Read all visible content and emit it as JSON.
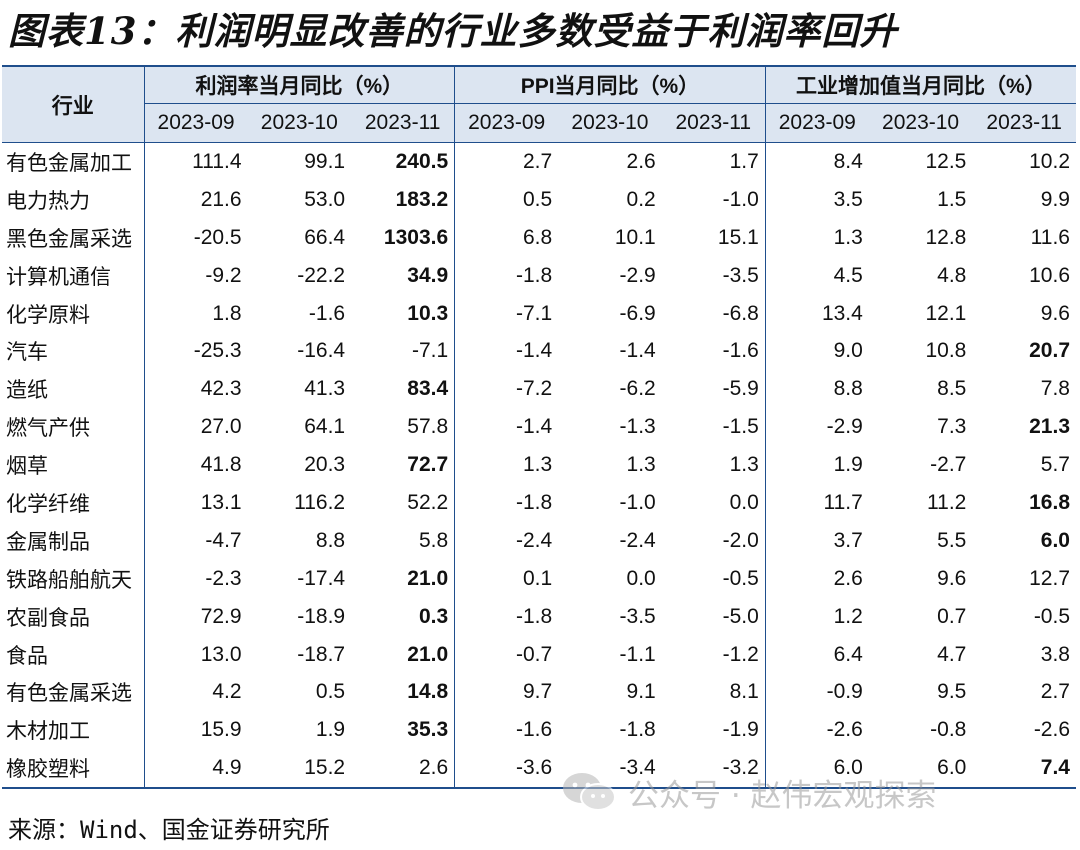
{
  "title": "图表13：利润明显改善的行业多数受益于利润率回升",
  "header": {
    "industry": "行业",
    "groups": [
      "利润率当月同比（%）",
      "PPI当月同比（%）",
      "工业增加值当月同比（%）"
    ],
    "periods": [
      "2023-09",
      "2023-10",
      "2023-11"
    ]
  },
  "rows": [
    {
      "name": "有色金属加工",
      "v": [
        "111.4",
        "99.1",
        "240.5",
        "2.7",
        "2.6",
        "1.7",
        "8.4",
        "12.5",
        "10.2"
      ],
      "bold": [
        2
      ]
    },
    {
      "name": "电力热力",
      "v": [
        "21.6",
        "53.0",
        "183.2",
        "0.5",
        "0.2",
        "-1.0",
        "3.5",
        "1.5",
        "9.9"
      ],
      "bold": [
        2
      ]
    },
    {
      "name": "黑色金属采选",
      "v": [
        "-20.5",
        "66.4",
        "1303.6",
        "6.8",
        "10.1",
        "15.1",
        "1.3",
        "12.8",
        "11.6"
      ],
      "bold": [
        2
      ]
    },
    {
      "name": "计算机通信",
      "v": [
        "-9.2",
        "-22.2",
        "34.9",
        "-1.8",
        "-2.9",
        "-3.5",
        "4.5",
        "4.8",
        "10.6"
      ],
      "bold": [
        2
      ]
    },
    {
      "name": "化学原料",
      "v": [
        "1.8",
        "-1.6",
        "10.3",
        "-7.1",
        "-6.9",
        "-6.8",
        "13.4",
        "12.1",
        "9.6"
      ],
      "bold": [
        2
      ]
    },
    {
      "name": "汽车",
      "v": [
        "-25.3",
        "-16.4",
        "-7.1",
        "-1.4",
        "-1.4",
        "-1.6",
        "9.0",
        "10.8",
        "20.7"
      ],
      "bold": [
        8
      ]
    },
    {
      "name": "造纸",
      "v": [
        "42.3",
        "41.3",
        "83.4",
        "-7.2",
        "-6.2",
        "-5.9",
        "8.8",
        "8.5",
        "7.8"
      ],
      "bold": [
        2
      ]
    },
    {
      "name": "燃气产供",
      "v": [
        "27.0",
        "64.1",
        "57.8",
        "-1.4",
        "-1.3",
        "-1.5",
        "-2.9",
        "7.3",
        "21.3"
      ],
      "bold": [
        8
      ]
    },
    {
      "name": "烟草",
      "v": [
        "41.8",
        "20.3",
        "72.7",
        "1.3",
        "1.3",
        "1.3",
        "1.9",
        "-2.7",
        "5.7"
      ],
      "bold": [
        2
      ]
    },
    {
      "name": "化学纤维",
      "v": [
        "13.1",
        "116.2",
        "52.2",
        "-1.8",
        "-1.0",
        "0.0",
        "11.7",
        "11.2",
        "16.8"
      ],
      "bold": [
        8
      ]
    },
    {
      "name": "金属制品",
      "v": [
        "-4.7",
        "8.8",
        "5.8",
        "-2.4",
        "-2.4",
        "-2.0",
        "3.7",
        "5.5",
        "6.0"
      ],
      "bold": [
        8
      ]
    },
    {
      "name": "铁路船舶航天",
      "v": [
        "-2.3",
        "-17.4",
        "21.0",
        "0.1",
        "0.0",
        "-0.5",
        "2.6",
        "9.6",
        "12.7"
      ],
      "bold": [
        2
      ]
    },
    {
      "name": "农副食品",
      "v": [
        "72.9",
        "-18.9",
        "0.3",
        "-1.8",
        "-3.5",
        "-5.0",
        "1.2",
        "0.7",
        "-0.5"
      ],
      "bold": [
        2
      ]
    },
    {
      "name": "食品",
      "v": [
        "13.0",
        "-18.7",
        "21.0",
        "-0.7",
        "-1.1",
        "-1.2",
        "6.4",
        "4.7",
        "3.8"
      ],
      "bold": [
        2
      ]
    },
    {
      "name": "有色金属采选",
      "v": [
        "4.2",
        "0.5",
        "14.8",
        "9.7",
        "9.1",
        "8.1",
        "-0.9",
        "9.5",
        "2.7"
      ],
      "bold": [
        2
      ]
    },
    {
      "name": "木材加工",
      "v": [
        "15.9",
        "1.9",
        "35.3",
        "-1.6",
        "-1.8",
        "-1.9",
        "-2.6",
        "-0.8",
        "-2.6"
      ],
      "bold": [
        2
      ]
    },
    {
      "name": "橡胶塑料",
      "v": [
        "4.9",
        "15.2",
        "2.6",
        "-3.6",
        "-3.4",
        "-3.2",
        "6.0",
        "6.0",
        "7.4"
      ],
      "bold": [
        8
      ]
    }
  ],
  "source": "来源：Wind、国金证券研究所",
  "watermark": "公众号 · 赵伟宏观探索",
  "colors": {
    "header_bg": "#dce5f1",
    "rule": "#1f4e8c"
  }
}
